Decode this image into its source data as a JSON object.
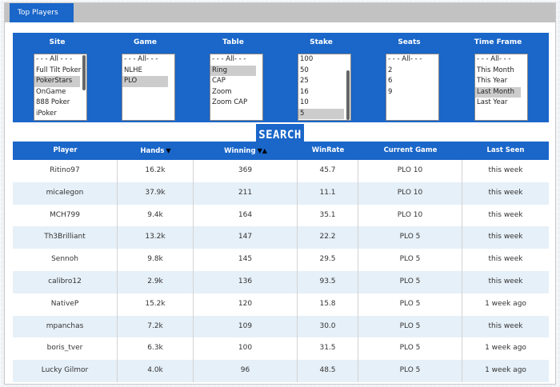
{
  "tabs": {
    "active": "Top Players"
  },
  "filters": [
    {
      "header": "Site",
      "options": [
        "- - - All - - -",
        "Full Tilt Poker",
        "PokerStars",
        "OnGame",
        "888 Poker",
        "iPoker"
      ],
      "selected": [
        "PokerStars"
      ],
      "scrollbar": "top"
    },
    {
      "header": "Game",
      "options": [
        "- - - All- - -",
        "NLHE",
        "PLO"
      ],
      "selected": [
        "PLO"
      ],
      "scrollbar": "none"
    },
    {
      "header": "Table",
      "options": [
        "- - - All- - -",
        "Ring",
        "CAP",
        "Zoom",
        "Zoom CAP"
      ],
      "selected": [
        "Ring"
      ],
      "scrollbar": "none"
    },
    {
      "header": "Stake",
      "options": [
        "100",
        "50",
        "25",
        "16",
        "10",
        "5"
      ],
      "selected": [
        "5"
      ],
      "scrollbar": "bottom"
    },
    {
      "header": "Seats",
      "options": [
        "- - - All- - -",
        "2",
        "6",
        "9"
      ],
      "selected": [],
      "scrollbar": "none"
    },
    {
      "header": "Time Frame",
      "options": [
        "- - - All- - -",
        "This Month",
        "This Year",
        "Last Month",
        "Last Year"
      ],
      "selected": [
        "Last Month"
      ],
      "scrollbar": "none"
    }
  ],
  "search": {
    "label": "SEARCH"
  },
  "table": {
    "columns": [
      "Player",
      "Hands",
      "Winning",
      "WinRate",
      "Current Game",
      "Last Seen"
    ],
    "sort_indicators": {
      "Hands": "▼",
      "Winning": "▼▲"
    },
    "rows": [
      [
        "Ritino97",
        "16.2k",
        "369",
        "45.7",
        "PLO 10",
        "this week"
      ],
      [
        "micalegon",
        "37.9k",
        "211",
        "11.1",
        "PLO 10",
        "this week"
      ],
      [
        "MCH799",
        "9.4k",
        "164",
        "35.1",
        "PLO 10",
        "this week"
      ],
      [
        "Th3Brilliant",
        "13.2k",
        "147",
        "22.2",
        "PLO 5",
        "this week"
      ],
      [
        "Sennoh",
        "9.8k",
        "145",
        "29.5",
        "PLO 5",
        "this week"
      ],
      [
        "calibro12",
        "2.9k",
        "136",
        "93.5",
        "PLO 5",
        "this week"
      ],
      [
        "NativeP",
        "15.2k",
        "120",
        "15.8",
        "PLO 5",
        "1 week ago"
      ],
      [
        "mpanchas",
        "7.2k",
        "109",
        "30.0",
        "PLO 5",
        "this week"
      ],
      [
        "boris_tver",
        "6.3k",
        "100",
        "31.5",
        "PLO 5",
        "1 week ago"
      ],
      [
        "Lucky Gilmor",
        "4.0k",
        "96",
        "48.5",
        "PLO 5",
        "1 week ago"
      ]
    ]
  },
  "colors": {
    "primary": "#1a66c9",
    "alt_row": "#e6f0f8",
    "tabbar": "#c2c2c2"
  }
}
